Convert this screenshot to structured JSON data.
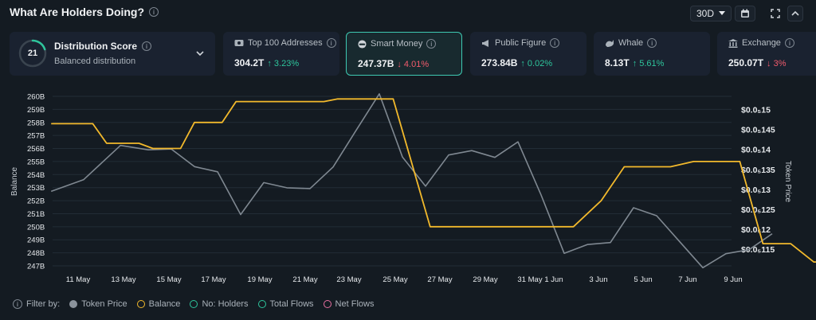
{
  "header": {
    "title": "What Are Holders Doing?",
    "period": "30D"
  },
  "cards": {
    "distribution": {
      "score": "21",
      "label": "Distribution Score",
      "sub": "Balanced distribution"
    },
    "top100": {
      "label": "Top 100 Addresses",
      "value": "304.2T",
      "change": "↑ 3.23%"
    },
    "smart": {
      "label": "Smart Money",
      "value": "247.37B",
      "change": "↓ 4.01%"
    },
    "public": {
      "label": "Public Figure",
      "value": "273.84B",
      "change": "↑ 0.02%"
    },
    "whale": {
      "label": "Whale",
      "value": "8.13T",
      "change": "↑ 5.61%"
    },
    "exchange": {
      "label": "Exchange",
      "value": "250.07T",
      "change": "↓ 3%"
    }
  },
  "legend": {
    "filter_label": "Filter by:",
    "items": [
      {
        "name": "Token Price",
        "color": "#8b939c",
        "fill": true
      },
      {
        "name": "Balance",
        "color": "#f2b92c",
        "fill": false
      },
      {
        "name": "No: Holders",
        "color": "#2ec59c",
        "fill": false
      },
      {
        "name": "Total Flows",
        "color": "#2ec59c",
        "fill": false
      },
      {
        "name": "Net Flows",
        "color": "#e76fa0",
        "fill": false
      }
    ]
  },
  "chart_data": {
    "type": "line",
    "ylabel": "Balance",
    "y2label": "Token Price",
    "x_ticks": [
      "11 May",
      "13 May",
      "15 May",
      "17 May",
      "19 May",
      "21 May",
      "23 May",
      "25 May",
      "27 May",
      "29 May",
      "31 May",
      "1 Jun",
      "3 Jun",
      "5 Jun",
      "7 Jun",
      "9 Jun"
    ],
    "y_ticks": [
      "260B",
      "259B",
      "258B",
      "257B",
      "256B",
      "255B",
      "254B",
      "253B",
      "252B",
      "251B",
      "250B",
      "249B",
      "248B",
      "247B"
    ],
    "y_range": [
      247,
      260
    ],
    "y2_ticks": [
      "$0.0₅15",
      "$0.0₅145",
      "$0.0₅14",
      "$0.0₅135",
      "$0.0₅13",
      "$0.0₅125",
      "$0.0₅12",
      "$0.0₅115"
    ],
    "y2_values": [
      0.15,
      0.145,
      0.14,
      0.135,
      0.13,
      0.125,
      0.12,
      0.115
    ],
    "series": [
      {
        "name": "Balance",
        "color": "#f2b92c",
        "step": true,
        "points": [
          [
            -1.2,
            257.9
          ],
          [
            0.6,
            257.9
          ],
          [
            1.2,
            256.4
          ],
          [
            2.6,
            256.4
          ],
          [
            3.2,
            256.0
          ],
          [
            4.4,
            256.0
          ],
          [
            5.0,
            258.0
          ],
          [
            6.2,
            258.0
          ],
          [
            6.8,
            259.6
          ],
          [
            10.6,
            259.6
          ],
          [
            11.2,
            259.8
          ],
          [
            13.6,
            259.8
          ],
          [
            15.2,
            250.0
          ],
          [
            21.4,
            250.0
          ],
          [
            22.6,
            252.0
          ],
          [
            23.6,
            254.6
          ],
          [
            25.6,
            254.6
          ],
          [
            26.6,
            255.0
          ],
          [
            28.6,
            255.0
          ],
          [
            29.6,
            248.7
          ],
          [
            30.8,
            248.7
          ],
          [
            31.8,
            247.3
          ],
          [
            34.4,
            247.3
          ]
        ]
      },
      {
        "name": "Token Price",
        "color": "#7f8891",
        "points": [
          [
            -1.2,
            0.1296
          ],
          [
            0.2,
            0.1325
          ],
          [
            1.8,
            0.1411
          ],
          [
            3.0,
            0.14
          ],
          [
            4.0,
            0.1402
          ],
          [
            5.0,
            0.1358
          ],
          [
            6.0,
            0.1345
          ],
          [
            7.0,
            0.1238
          ],
          [
            8.0,
            0.1318
          ],
          [
            9.0,
            0.1305
          ],
          [
            10.0,
            0.1303
          ],
          [
            11.0,
            0.1357
          ],
          [
            12.0,
            0.1449
          ],
          [
            13.0,
            0.154
          ],
          [
            14.0,
            0.1382
          ],
          [
            15.0,
            0.1309
          ],
          [
            16.0,
            0.1387
          ],
          [
            17.0,
            0.1398
          ],
          [
            18.0,
            0.1381
          ],
          [
            19.0,
            0.142
          ],
          [
            20.0,
            0.1287
          ],
          [
            21.0,
            0.1141
          ],
          [
            22.0,
            0.1163
          ],
          [
            23.0,
            0.1168
          ],
          [
            24.0,
            0.1255
          ],
          [
            25.0,
            0.1235
          ],
          [
            26.0,
            0.117
          ],
          [
            27.0,
            0.1105
          ],
          [
            28.0,
            0.114
          ],
          [
            29.0,
            0.115
          ],
          [
            30.0,
            0.119
          ]
        ]
      }
    ]
  }
}
